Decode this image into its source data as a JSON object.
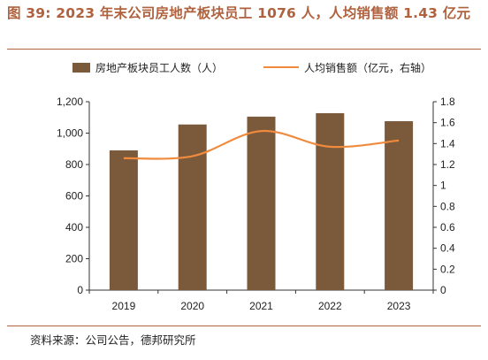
{
  "figure": {
    "title": "图 39: 2023 年末公司房地产板块员工 1076 人，人均销售额 1.43 亿元",
    "source": "资料来源：公司公告，德邦研究所"
  },
  "colors": {
    "bar": "#7b5a3c",
    "line": "#f08a3c",
    "title": "#b0623e"
  },
  "chart_data": {
    "type": "bar",
    "categories": [
      "2019",
      "2020",
      "2021",
      "2022",
      "2023"
    ],
    "series": [
      {
        "name": "房地产板块员工人数（人）",
        "type": "bar",
        "axis": "left",
        "values": [
          890,
          1055,
          1105,
          1127,
          1076
        ]
      },
      {
        "name": "人均销售额（亿元，右轴）",
        "type": "line",
        "axis": "right",
        "values": [
          1.26,
          1.28,
          1.52,
          1.37,
          1.43
        ]
      }
    ],
    "y_left": {
      "ylim": [
        0,
        1200
      ],
      "ticks": [
        "0",
        "200",
        "400",
        "600",
        "800",
        "1,000",
        "1,200"
      ]
    },
    "y_right": {
      "ylim": [
        0,
        1.8
      ],
      "ticks": [
        "0",
        "0.2",
        "0.4",
        "0.6",
        "0.8",
        "1",
        "1.2",
        "1.4",
        "1.6",
        "1.8"
      ]
    },
    "legend_position": "top",
    "grid": false
  }
}
